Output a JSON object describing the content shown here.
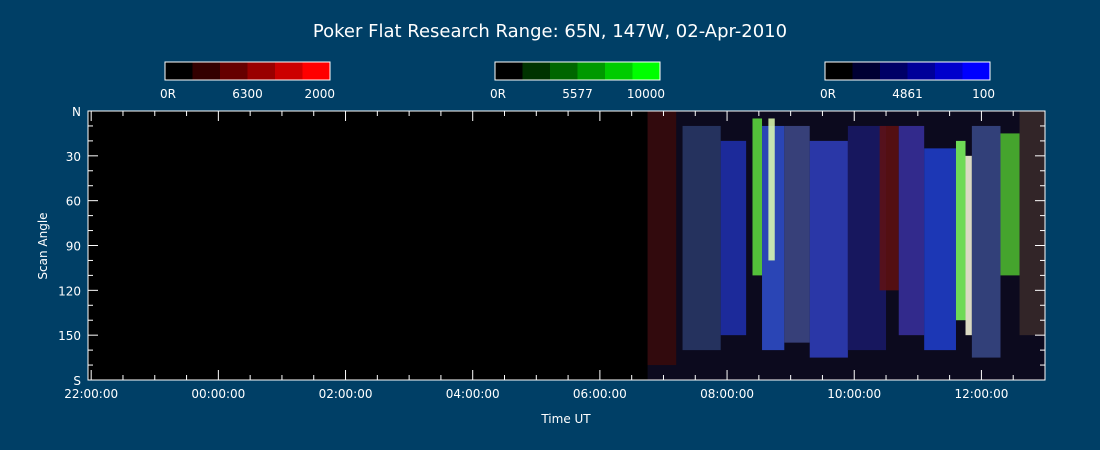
{
  "chart_data": {
    "type": "heatmap",
    "title": "Poker Flat Research Range: 65N, 147W, 02-Apr-2010",
    "xlabel": "Time UT",
    "ylabel": "Scan Angle",
    "x_tick_labels": [
      "22:00:00",
      "00:00:00",
      "02:00:00",
      "04:00:00",
      "06:00:00",
      "08:00:00",
      "10:00:00",
      "12:00:00"
    ],
    "x_tick_hours": [
      0,
      2,
      4,
      6,
      8,
      10,
      12,
      14
    ],
    "x_range_hours": [
      -0.05,
      15.0
    ],
    "y_tick_labels": [
      "N",
      "30",
      "60",
      "90",
      "120",
      "150",
      "S"
    ],
    "y_tick_values": [
      0,
      30,
      60,
      90,
      120,
      150,
      180
    ],
    "y_range": [
      0,
      180
    ],
    "colorbars": [
      {
        "wavelength": "6300",
        "min_label": "0R",
        "max_label": "2000",
        "color": "#ff0000"
      },
      {
        "wavelength": "5577",
        "min_label": "0R",
        "max_label": "10000",
        "color": "#00ff00"
      },
      {
        "wavelength": "4861",
        "min_label": "0R",
        "max_label": "100",
        "color": "#0000ff"
      }
    ],
    "data_start_hour": 8.75,
    "bands": [
      {
        "x0": 8.75,
        "x1": 9.2,
        "color": "#3a0a0a",
        "y0": 0,
        "y1": 170
      },
      {
        "x0": 9.3,
        "x1": 9.9,
        "color": "#2a3a6a",
        "y0": 10,
        "y1": 160
      },
      {
        "x0": 9.9,
        "x1": 10.3,
        "color": "#2030b0",
        "y0": 20,
        "y1": 150
      },
      {
        "x0": 10.4,
        "x1": 10.55,
        "color": "#60e040",
        "y0": 5,
        "y1": 110
      },
      {
        "x0": 10.55,
        "x1": 10.9,
        "color": "#3050d0",
        "y0": 10,
        "y1": 160
      },
      {
        "x0": 10.65,
        "x1": 10.75,
        "color": "#e0ffb0",
        "y0": 5,
        "y1": 100
      },
      {
        "x0": 10.9,
        "x1": 11.3,
        "color": "#404a8a",
        "y0": 10,
        "y1": 155
      },
      {
        "x0": 11.3,
        "x1": 11.9,
        "color": "#3040c0",
        "y0": 20,
        "y1": 165
      },
      {
        "x0": 11.9,
        "x1": 12.5,
        "color": "#1a1a6a",
        "y0": 10,
        "y1": 160
      },
      {
        "x0": 12.4,
        "x1": 12.7,
        "color": "#601010",
        "y0": 10,
        "y1": 120
      },
      {
        "x0": 12.7,
        "x1": 13.1,
        "color": "#3a30a0",
        "y0": 10,
        "y1": 150
      },
      {
        "x0": 13.1,
        "x1": 13.6,
        "color": "#2040d0",
        "y0": 25,
        "y1": 160
      },
      {
        "x0": 13.6,
        "x1": 13.75,
        "color": "#80ff60",
        "y0": 20,
        "y1": 140
      },
      {
        "x0": 13.75,
        "x1": 13.85,
        "color": "#ffffe0",
        "y0": 30,
        "y1": 150
      },
      {
        "x0": 13.85,
        "x1": 14.3,
        "color": "#3a4a8a",
        "y0": 10,
        "y1": 165
      },
      {
        "x0": 14.3,
        "x1": 14.6,
        "color": "#50c030",
        "y0": 15,
        "y1": 110
      },
      {
        "x0": 14.6,
        "x1": 15.0,
        "color": "#3a2a2a",
        "y0": 0,
        "y1": 150
      }
    ]
  }
}
